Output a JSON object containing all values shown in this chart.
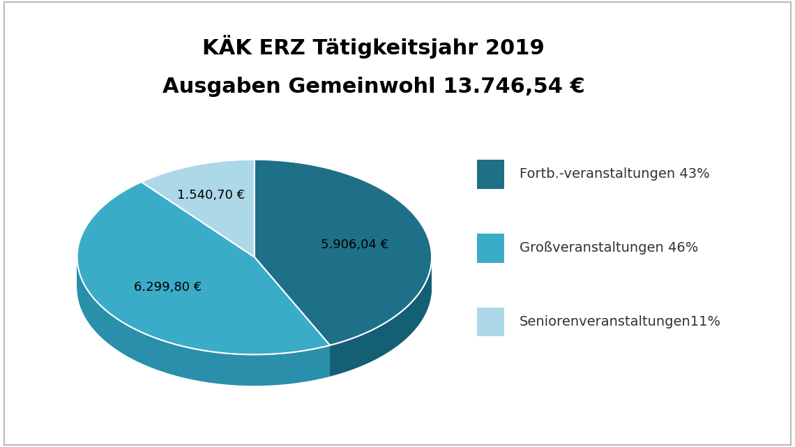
{
  "title_line1": "KÄK ERZ Tätigkeitsjahr 2019",
  "title_line2": "Ausgaben Gemeinwohl 13.746,54 €",
  "slices": [
    43,
    46,
    11
  ],
  "labels": [
    "5.906,04 €",
    "6.299,80 €",
    "1.540,70 €"
  ],
  "colors": [
    "#1e7088",
    "#3aacc8",
    "#acd8e8"
  ],
  "side_colors": [
    "#155f75",
    "#2a8faa",
    "#8cbfcf"
  ],
  "legend_labels": [
    "Fortb.-veranstaltungen 43%",
    "Großveranstaltungen 46%",
    "Seniorenveranstaltungen11%"
  ],
  "legend_colors": [
    "#1e7088",
    "#3aacc8",
    "#acd8e8"
  ],
  "background_color": "#ffffff",
  "title_fontsize": 22,
  "label_fontsize": 13,
  "legend_fontsize": 14,
  "startangle": 90,
  "depth_layers": 20,
  "depth_step": 0.008
}
